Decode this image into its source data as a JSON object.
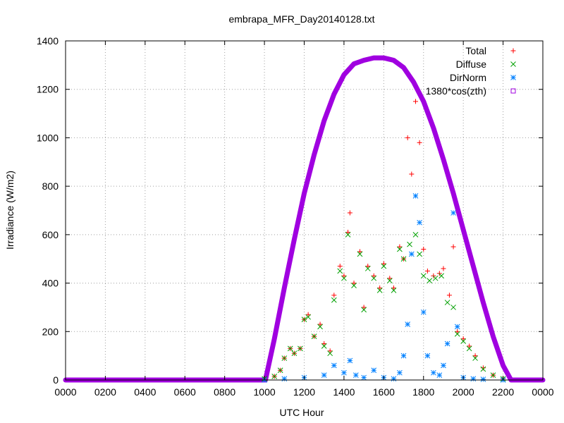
{
  "chart_data": {
    "type": "scatter",
    "title": "embrapa_MFR_Day20140128.txt",
    "xlabel": "UTC Hour",
    "ylabel": "Irradiance (W/m2)",
    "xlim": [
      0,
      24
    ],
    "ylim": [
      0,
      1400
    ],
    "x_ticks": [
      0,
      2,
      4,
      6,
      8,
      10,
      12,
      14,
      16,
      18,
      20,
      22,
      24
    ],
    "x_tick_labels": [
      "0000",
      "0200",
      "0400",
      "0600",
      "0800",
      "1000",
      "1200",
      "1400",
      "1600",
      "1800",
      "2000",
      "2200",
      "0000"
    ],
    "y_ticks": [
      0,
      200,
      400,
      600,
      800,
      1000,
      1200,
      1400
    ],
    "y_tick_labels": [
      "0",
      "200",
      "400",
      "600",
      "800",
      "1000",
      "1200",
      "1400"
    ],
    "grid": true,
    "legend_position": "top-right",
    "series": [
      {
        "name": "Total",
        "color": "#ff0000",
        "marker": "plus",
        "x": [
          10.0,
          10.5,
          10.8,
          11.0,
          11.3,
          11.5,
          11.8,
          12.0,
          12.2,
          12.5,
          12.8,
          13.0,
          13.3,
          13.5,
          13.8,
          14.0,
          14.2,
          14.3,
          14.5,
          14.8,
          15.0,
          15.2,
          15.5,
          15.8,
          16.0,
          16.3,
          16.5,
          16.8,
          17.0,
          17.2,
          17.4,
          17.6,
          17.8,
          18.0,
          18.2,
          18.5,
          18.8,
          19.0,
          19.3,
          19.5,
          19.7,
          20.0,
          20.3,
          20.6,
          21.0,
          21.5,
          22.0
        ],
        "y": [
          5,
          15,
          40,
          90,
          130,
          110,
          130,
          250,
          270,
          180,
          230,
          150,
          120,
          350,
          470,
          430,
          610,
          690,
          400,
          530,
          300,
          470,
          430,
          380,
          480,
          420,
          380,
          550,
          500,
          1000,
          850,
          1150,
          980,
          540,
          450,
          430,
          440,
          460,
          350,
          550,
          200,
          170,
          140,
          100,
          50,
          20,
          5
        ]
      },
      {
        "name": "Diffuse",
        "color": "#00a000",
        "marker": "x",
        "x": [
          10.0,
          10.5,
          10.8,
          11.0,
          11.3,
          11.5,
          11.8,
          12.0,
          12.2,
          12.5,
          12.8,
          13.0,
          13.3,
          13.5,
          13.8,
          14.0,
          14.2,
          14.5,
          14.8,
          15.0,
          15.2,
          15.5,
          15.8,
          16.0,
          16.3,
          16.5,
          16.8,
          17.0,
          17.3,
          17.6,
          17.8,
          18.0,
          18.3,
          18.6,
          18.9,
          19.2,
          19.5,
          19.7,
          20.0,
          20.3,
          20.6,
          21.0,
          21.5,
          22.0
        ],
        "y": [
          5,
          15,
          40,
          90,
          130,
          110,
          130,
          250,
          260,
          180,
          220,
          140,
          110,
          330,
          450,
          420,
          600,
          390,
          520,
          290,
          460,
          420,
          370,
          470,
          410,
          370,
          540,
          500,
          560,
          600,
          520,
          430,
          410,
          420,
          430,
          320,
          300,
          190,
          160,
          130,
          90,
          45,
          20,
          5
        ]
      },
      {
        "name": "DirNorm",
        "color": "#0080ff",
        "marker": "star",
        "x": [
          10.0,
          11.0,
          12.0,
          13.0,
          13.5,
          14.0,
          14.3,
          14.6,
          15.0,
          15.5,
          16.0,
          16.5,
          16.8,
          17.0,
          17.2,
          17.4,
          17.6,
          17.8,
          18.0,
          18.2,
          18.5,
          18.8,
          19.0,
          19.2,
          19.5,
          19.7,
          20.0,
          20.5,
          21.0,
          22.0
        ],
        "y": [
          0,
          5,
          10,
          20,
          60,
          30,
          80,
          20,
          10,
          40,
          10,
          5,
          30,
          100,
          230,
          520,
          760,
          650,
          280,
          100,
          30,
          20,
          60,
          150,
          690,
          220,
          10,
          5,
          3,
          0
        ]
      },
      {
        "name": "1380*cos(zth)",
        "color": "#a000e0",
        "marker": "square",
        "x": [
          0,
          10.05,
          10.5,
          11.0,
          11.5,
          12.0,
          12.5,
          13.0,
          13.5,
          14.0,
          14.5,
          15.0,
          15.5,
          16.0,
          16.25,
          16.5,
          17.0,
          17.5,
          18.0,
          18.5,
          19.0,
          19.5,
          20.0,
          20.5,
          21.0,
          21.5,
          22.0,
          22.4,
          24
        ],
        "y": [
          0,
          0,
          170,
          380,
          580,
          770,
          930,
          1070,
          1180,
          1260,
          1305,
          1320,
          1330,
          1330,
          1325,
          1320,
          1290,
          1230,
          1150,
          1040,
          910,
          770,
          620,
          470,
          320,
          180,
          60,
          0,
          0
        ]
      }
    ]
  }
}
